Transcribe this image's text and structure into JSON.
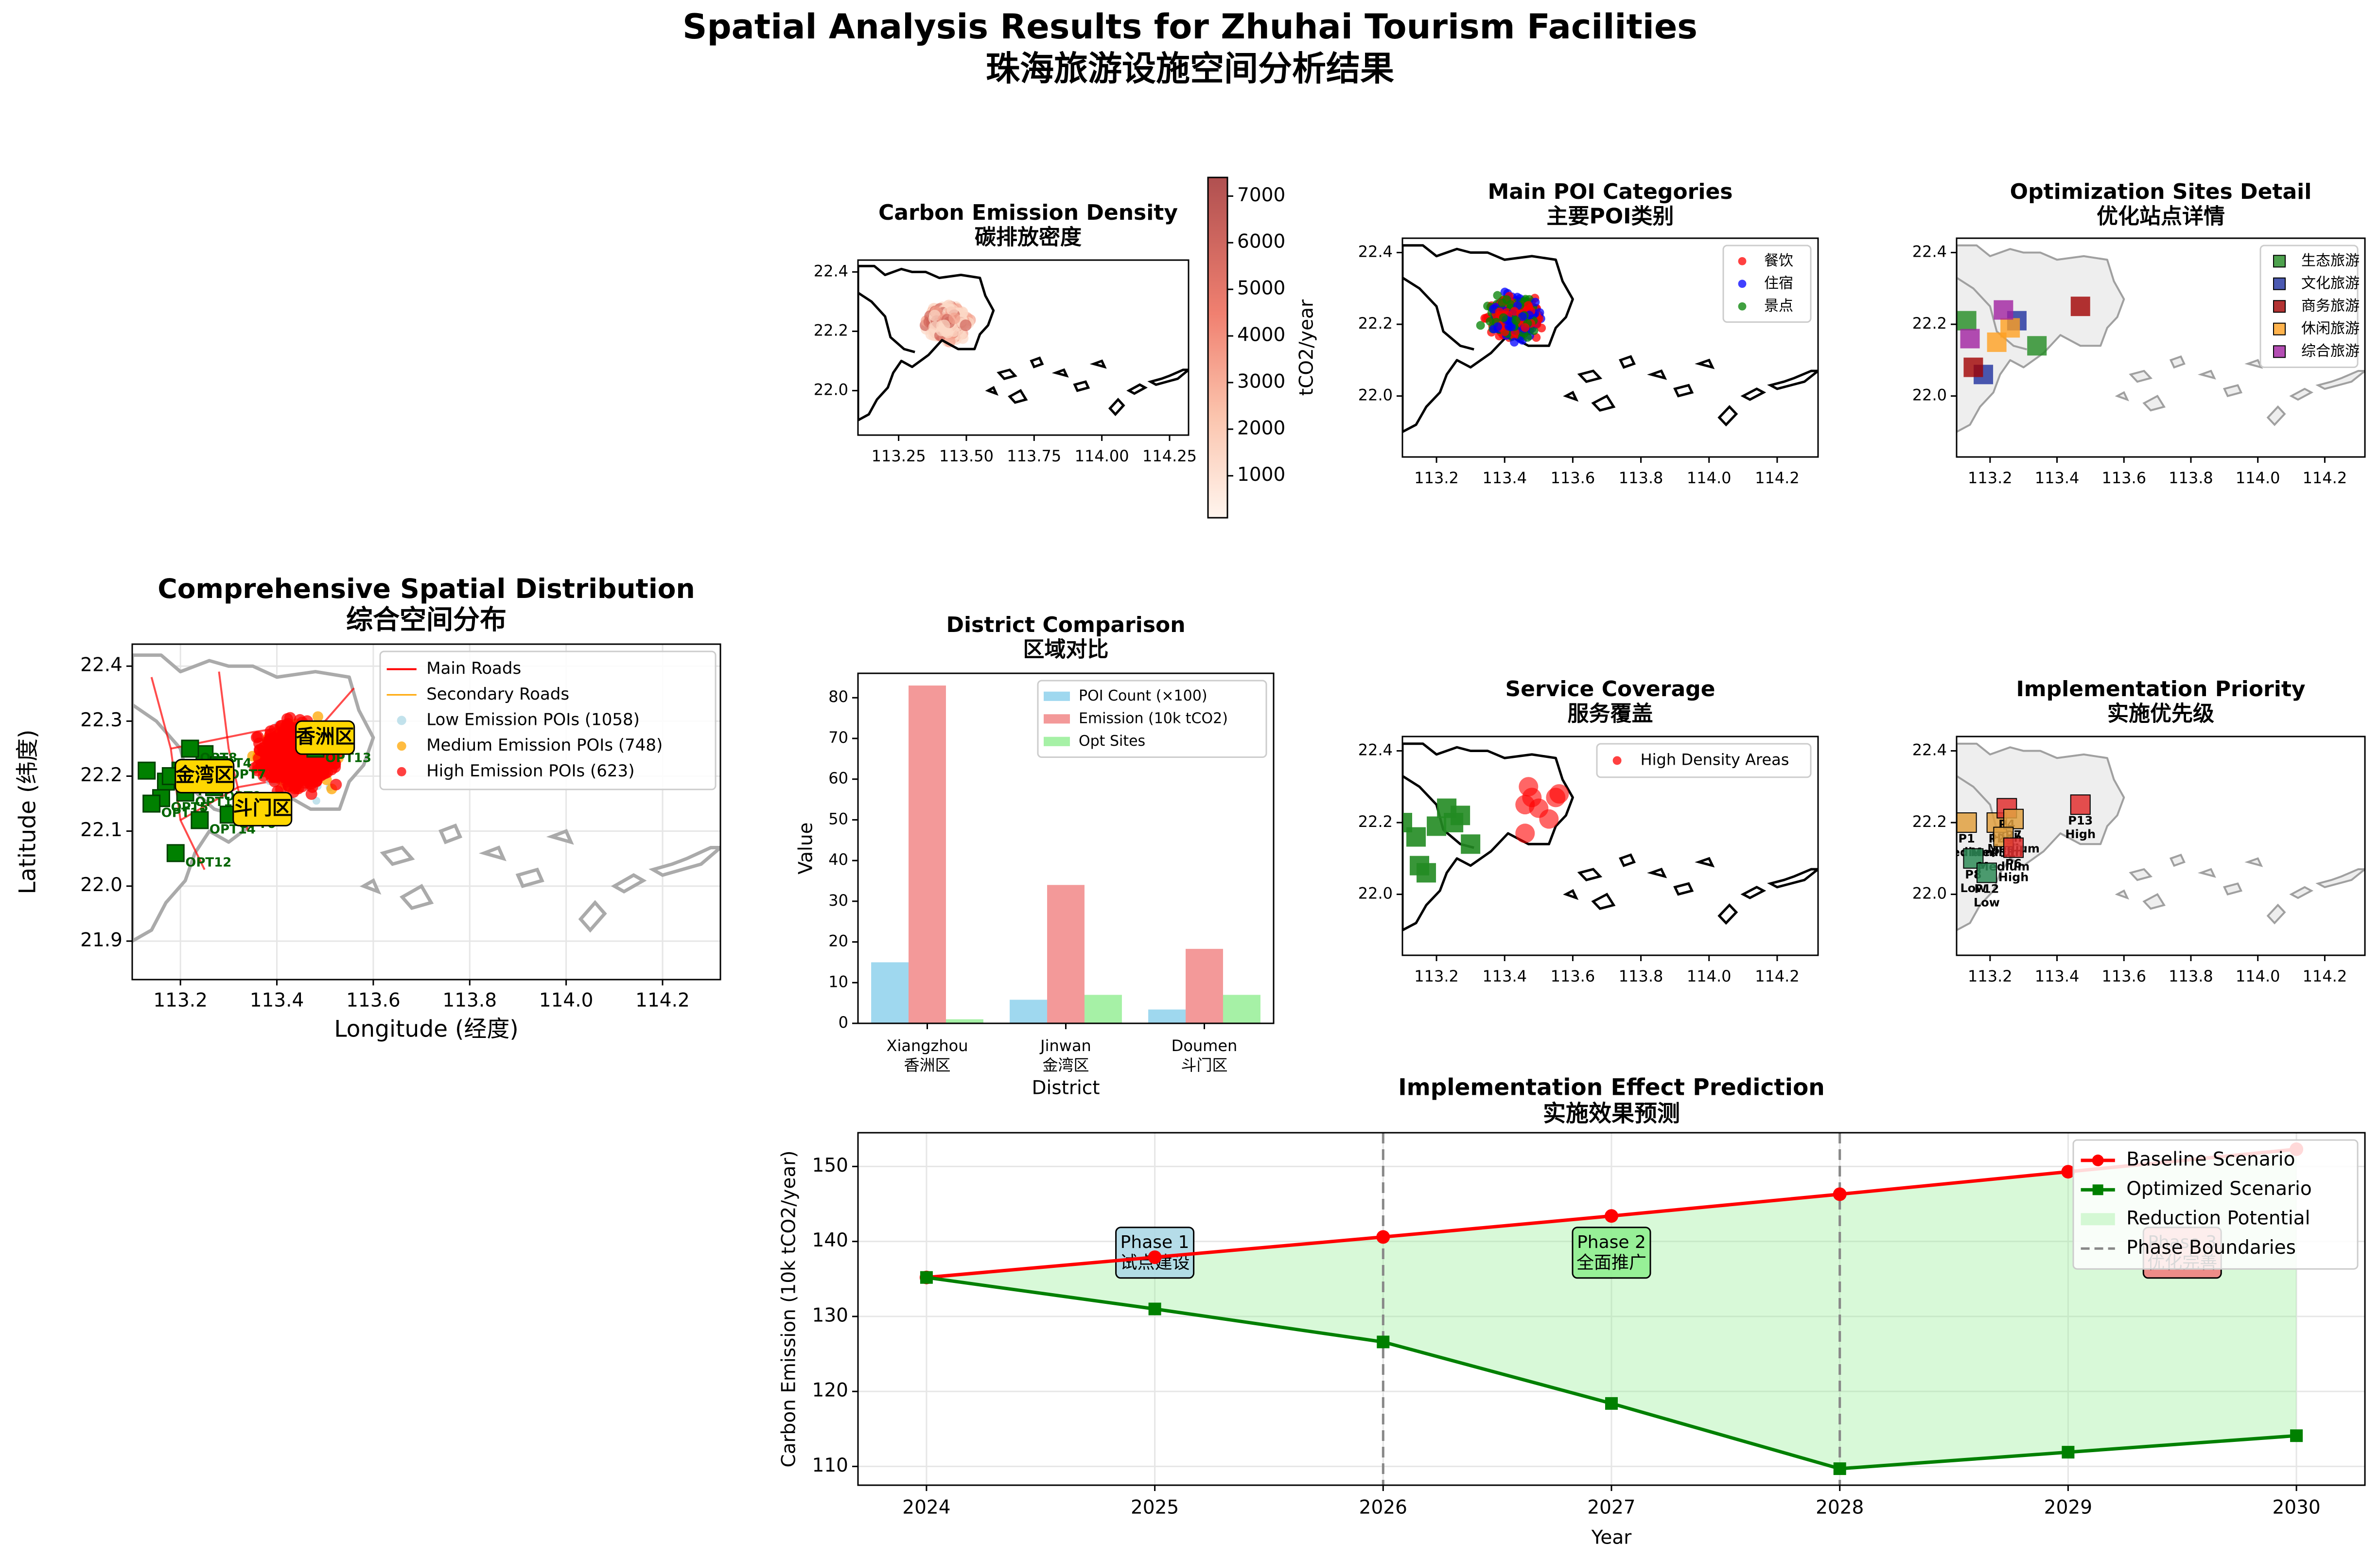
{
  "figure": {
    "title_en": "Spatial Analysis Results for Zhuhai Tourism Facilities",
    "title_zh": "珠海旅游设施空间分析结果"
  },
  "colors": {
    "low": "#add8e6",
    "medium": "#ffa500",
    "high": "#ff0000",
    "opt": "#008000",
    "main_road": "#ff0000",
    "secondary_road": "#ffa500",
    "baseline": "#ff0000",
    "optimized": "#008000",
    "reduction_fill": "#90ee90",
    "poi_bar": "#87ceeb",
    "emission_bar": "#f08080",
    "opt_bar": "#90ee90",
    "label_box": "#ffd700"
  },
  "chart_data": [
    {
      "id": "comprehensive",
      "type": "scatter",
      "title": "Comprehensive Spatial Distribution",
      "subtitle": "综合空间分布",
      "xlabel": "Longitude (经度)",
      "ylabel": "Latitude (纬度)",
      "xlim": [
        113.1,
        114.32
      ],
      "ylim": [
        21.83,
        22.44
      ],
      "xticks": [
        113.2,
        113.4,
        113.6,
        113.8,
        114.0,
        114.2
      ],
      "yticks": [
        21.9,
        22.0,
        22.1,
        22.2,
        22.3,
        22.4
      ],
      "grid": true,
      "legend_position": "top-right",
      "legend": [
        "Main Roads",
        "Secondary Roads",
        "Low Emission POIs (1058)",
        "Medium Emission POIs (748)",
        "High Emission POIs (623)"
      ],
      "district_labels": [
        {
          "text": "香洲区",
          "x": 113.5,
          "y": 22.27
        },
        {
          "text": "金湾区",
          "x": 113.25,
          "y": 22.2
        },
        {
          "text": "斗门区",
          "x": 113.37,
          "y": 22.14
        }
      ],
      "opt_sites": [
        {
          "label": "OPT1",
          "x": 113.13,
          "y": 22.21
        },
        {
          "label": "OPT2",
          "x": 113.2,
          "y": 22.21
        },
        {
          "label": "OPT3",
          "x": 113.17,
          "y": 22.19
        },
        {
          "label": "OPT4",
          "x": 113.25,
          "y": 22.24
        },
        {
          "label": "OPT5",
          "x": 113.16,
          "y": 22.16
        },
        {
          "label": "OPT6",
          "x": 113.3,
          "y": 22.13
        },
        {
          "label": "OPT7",
          "x": 113.28,
          "y": 22.22
        },
        {
          "label": "OPT8",
          "x": 113.22,
          "y": 22.25
        },
        {
          "label": "OPT9",
          "x": 113.27,
          "y": 22.18
        },
        {
          "label": "OPT10",
          "x": 113.18,
          "y": 22.2
        },
        {
          "label": "OPT11",
          "x": 113.14,
          "y": 22.15
        },
        {
          "label": "OPT12",
          "x": 113.19,
          "y": 22.06
        },
        {
          "label": "OPT13",
          "x": 113.48,
          "y": 22.25
        },
        {
          "label": "OPT14",
          "x": 113.24,
          "y": 22.12
        },
        {
          "label": "OPT15",
          "x": 113.21,
          "y": 22.17
        }
      ]
    },
    {
      "id": "density",
      "type": "heatmap",
      "title": "Carbon Emission Density",
      "subtitle": "碳排放密度",
      "xlim": [
        113.1,
        114.32
      ],
      "ylim": [
        21.85,
        22.44
      ],
      "xticks": [
        113.25,
        113.5,
        113.75,
        114.0,
        114.25
      ],
      "yticks": [
        22.0,
        22.2,
        22.4
      ],
      "colorbar_label": "tCO2/year",
      "colorbar_ticks": [
        1000,
        2000,
        3000,
        4000,
        5000,
        6000,
        7000
      ],
      "colorbar_range": [
        100,
        7400
      ]
    },
    {
      "id": "poi_categories",
      "type": "scatter",
      "title": "Main POI Categories",
      "subtitle": "主要POI类别",
      "xlim": [
        113.1,
        114.32
      ],
      "ylim": [
        21.83,
        22.44
      ],
      "xticks": [
        113.2,
        113.4,
        113.6,
        113.8,
        114.0,
        114.2
      ],
      "yticks": [
        22.0,
        22.2,
        22.4
      ],
      "legend_position": "top-right",
      "series": [
        {
          "name": "餐饮",
          "color": "#ff0000"
        },
        {
          "name": "住宿",
          "color": "#0000ff"
        },
        {
          "name": "景点",
          "color": "#008000"
        }
      ]
    },
    {
      "id": "opt_detail",
      "type": "scatter",
      "title": "Optimization Sites Detail",
      "subtitle": "优化站点详情",
      "xlim": [
        113.1,
        114.32
      ],
      "ylim": [
        21.83,
        22.44
      ],
      "xticks": [
        113.2,
        113.4,
        113.6,
        113.8,
        114.0,
        114.2
      ],
      "yticks": [
        22.0,
        22.2,
        22.4
      ],
      "legend_position": "top-right",
      "series": [
        {
          "name": "生态旅游",
          "color": "#228b22",
          "points": [
            [
              113.13,
              22.21
            ],
            [
              113.34,
              22.14
            ]
          ]
        },
        {
          "name": "文化旅游",
          "color": "#1e2f9e",
          "points": [
            [
              113.18,
              22.06
            ],
            [
              113.28,
              22.21
            ]
          ]
        },
        {
          "name": "商务旅游",
          "color": "#a00000",
          "points": [
            [
              113.47,
              22.25
            ],
            [
              113.15,
              22.08
            ]
          ]
        },
        {
          "name": "休闲旅游",
          "color": "#ffa020",
          "points": [
            [
              113.22,
              22.15
            ],
            [
              113.26,
              22.19
            ]
          ]
        },
        {
          "name": "综合旅游",
          "color": "#a020a0",
          "points": [
            [
              113.14,
              22.16
            ],
            [
              113.24,
              22.24
            ]
          ]
        }
      ]
    },
    {
      "id": "district",
      "type": "bar",
      "title": "District Comparison",
      "subtitle": "区域对比",
      "xlabel": "District",
      "ylabel": "Value",
      "categories": [
        "Xiangzhou",
        "Jinwan",
        "Doumen"
      ],
      "categories_zh": [
        "香洲区",
        "金湾区",
        "斗门区"
      ],
      "ylim": [
        0,
        86
      ],
      "yticks": [
        0,
        10,
        20,
        30,
        40,
        50,
        60,
        70,
        80
      ],
      "legend_position": "top-right",
      "series": [
        {
          "name": "POI Count (×100)",
          "values": [
            15,
            5.8,
            3.4
          ]
        },
        {
          "name": "Emission (10k tCO2)",
          "values": [
            83,
            34,
            18.3
          ]
        },
        {
          "name": "Opt Sites",
          "values": [
            1,
            7,
            7
          ]
        }
      ]
    },
    {
      "id": "service",
      "type": "scatter",
      "title": "Service Coverage",
      "subtitle": "服务覆盖",
      "xlim": [
        113.1,
        114.32
      ],
      "ylim": [
        21.83,
        22.44
      ],
      "xticks": [
        113.2,
        113.4,
        113.6,
        113.8,
        114.0,
        114.2
      ],
      "yticks": [
        22.0,
        22.2,
        22.4
      ],
      "legend_position": "top-right",
      "legend": [
        "High Density Areas"
      ]
    },
    {
      "id": "priority",
      "type": "scatter",
      "title": "Implementation Priority",
      "subtitle": "实施优先级",
      "xlim": [
        113.1,
        114.32
      ],
      "ylim": [
        21.83,
        22.44
      ],
      "xticks": [
        113.2,
        113.4,
        113.6,
        113.8,
        114.0,
        114.2
      ],
      "yticks": [
        22.0,
        22.2,
        22.4
      ],
      "sites": [
        {
          "label": "P13",
          "priority": "High",
          "x": 113.47,
          "y": 22.25
        },
        {
          "label": "P1",
          "priority": "Medium",
          "x": 113.13,
          "y": 22.2
        },
        {
          "label": "P2",
          "priority": "Medium",
          "x": 113.22,
          "y": 22.2
        },
        {
          "label": "P4",
          "priority": "High",
          "x": 113.25,
          "y": 22.24
        },
        {
          "label": "P7",
          "priority": "Medium",
          "x": 113.27,
          "y": 22.21
        },
        {
          "label": "P8",
          "priority": "Low",
          "x": 113.15,
          "y": 22.1
        },
        {
          "label": "P11",
          "priority": "Medium",
          "x": 113.24,
          "y": 22.16
        },
        {
          "label": "P12",
          "priority": "Low",
          "x": 113.19,
          "y": 22.06
        },
        {
          "label": "P6",
          "priority": "High",
          "x": 113.27,
          "y": 22.13
        }
      ]
    },
    {
      "id": "prediction",
      "type": "line",
      "title": "Implementation Effect Prediction",
      "subtitle": "实施效果预测",
      "xlabel": "Year",
      "ylabel": "Carbon Emission (10k tCO2/year)",
      "x": [
        2024,
        2025,
        2026,
        2027,
        2028,
        2029,
        2030
      ],
      "xlim": [
        2023.7,
        2030.3
      ],
      "ylim": [
        107.5,
        154.5
      ],
      "yticks": [
        110,
        120,
        130,
        140,
        150
      ],
      "grid": true,
      "legend_position": "top-right",
      "series": [
        {
          "name": "Baseline Scenario",
          "values": [
            135.2,
            137.9,
            140.6,
            143.4,
            146.3,
            149.3,
            152.3
          ]
        },
        {
          "name": "Optimized Scenario",
          "values": [
            135.2,
            131.0,
            126.6,
            118.4,
            109.7,
            111.9,
            114.1
          ]
        }
      ],
      "fill_label": "Reduction Potential",
      "boundary_label": "Phase Boundaries",
      "phase_boundaries": [
        2026,
        2028
      ],
      "phases": [
        {
          "en": "Phase 1",
          "zh": "试点建设",
          "x": 2025,
          "y": 138.5,
          "color": "#add8e6"
        },
        {
          "en": "Phase 2",
          "zh": "全面推广",
          "x": 2027,
          "y": 138.5,
          "color": "#90ee90"
        },
        {
          "en": "Phase 3",
          "zh": "优化完善",
          "x": 2029.5,
          "y": 138.5,
          "color": "#f08080"
        }
      ]
    }
  ]
}
